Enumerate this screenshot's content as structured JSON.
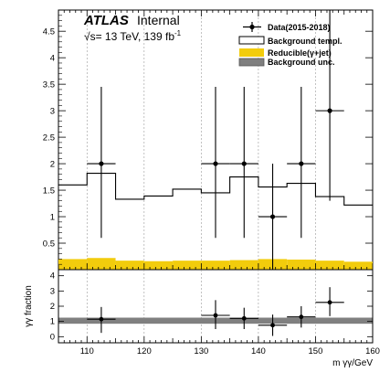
{
  "chart_data": {
    "type": "histogram",
    "experiment": "ATLAS",
    "status": "Internal",
    "energy_label": "√s= 13 TeV, 139 fb",
    "energy_label_sup": "-1",
    "xlabel": "m  γγ/GeV",
    "xlim": [
      105,
      160
    ],
    "xticks": [
      "110",
      "120",
      "130",
      "140",
      "150",
      "160"
    ],
    "upper": {
      "ylim": [
        0,
        4.9
      ],
      "yticks": [
        "0.5",
        "1",
        "1.5",
        "2",
        "2.5",
        "3",
        "3.5",
        "4",
        "4.5"
      ],
      "bins": [
        105,
        110,
        115,
        120,
        125,
        130,
        135,
        140,
        145,
        150,
        155,
        160
      ],
      "background_template": [
        1.6,
        1.82,
        1.33,
        1.39,
        1.52,
        1.45,
        1.75,
        1.56,
        1.63,
        1.38,
        1.22
      ],
      "reducible_gamma_jet": [
        0.2,
        0.22,
        0.17,
        0.16,
        0.17,
        0.17,
        0.18,
        0.2,
        0.19,
        0.17,
        0.15
      ],
      "data": {
        "x": [
          112.5,
          132.5,
          137.5,
          142.5,
          147.5,
          152.5
        ],
        "y": [
          2.0,
          2.0,
          2.0,
          1.0,
          2.0,
          3.0
        ],
        "err_lo": [
          1.4,
          1.4,
          1.4,
          1.0,
          1.4,
          1.7
        ],
        "err_hi": [
          1.45,
          1.45,
          1.45,
          1.0,
          1.45,
          1.9
        ]
      }
    },
    "lower": {
      "ylabel": "γγ fraction",
      "ylim": [
        -0.4,
        4.4
      ],
      "yticks": [
        "0",
        "1",
        "2",
        "3",
        "4"
      ],
      "band": [
        0.85,
        1.25
      ],
      "band_color": "#808080",
      "data": {
        "x": [
          112.5,
          132.5,
          137.5,
          142.5,
          147.5,
          152.5
        ],
        "y": [
          1.15,
          1.4,
          1.2,
          0.75,
          1.3,
          2.25
        ],
        "err_lo": [
          0.9,
          0.9,
          0.7,
          0.7,
          0.7,
          0.9
        ],
        "err_hi": [
          0.8,
          1.0,
          0.7,
          0.7,
          0.7,
          1.0
        ]
      }
    },
    "legend": {
      "placement": "top-right",
      "entries": [
        "Data(2015-2018)",
        "Background templ.",
        "Reducible(γ+jet)",
        "Background unc."
      ]
    },
    "colors": {
      "reducible": "#f2cc0c",
      "background_unc": "#7f7f7f",
      "data": "#000000"
    }
  }
}
